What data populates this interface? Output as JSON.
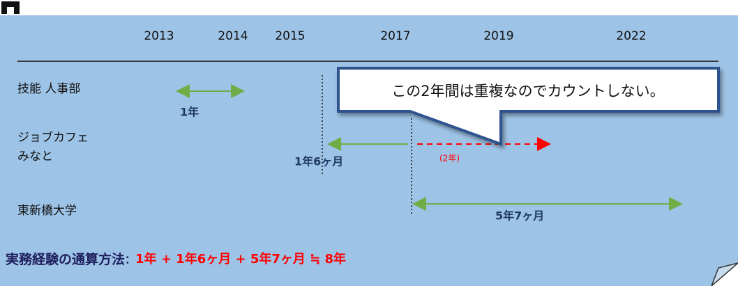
{
  "timeline": {
    "years": [
      "2013",
      "2014",
      "2015",
      "2017",
      "2019",
      "2022"
    ]
  },
  "rows": [
    {
      "label": [
        "技能 人事部"
      ],
      "duration": "1年"
    },
    {
      "label": [
        "ジョブカフェ",
        "みなと"
      ],
      "duration": "1年6ヶ月",
      "overlap": "(2年)"
    },
    {
      "label": [
        "東新橋大学"
      ],
      "duration": "5年7ヶ月"
    }
  ],
  "callout": {
    "text": "この2年間は重複なのでカウントしない。"
  },
  "formula": {
    "label": "実務経験の通算方法",
    "separator": "：",
    "expression": "1年 + 1年6ヶ月 + 5年7ヶ月 ≒ 8年"
  }
}
